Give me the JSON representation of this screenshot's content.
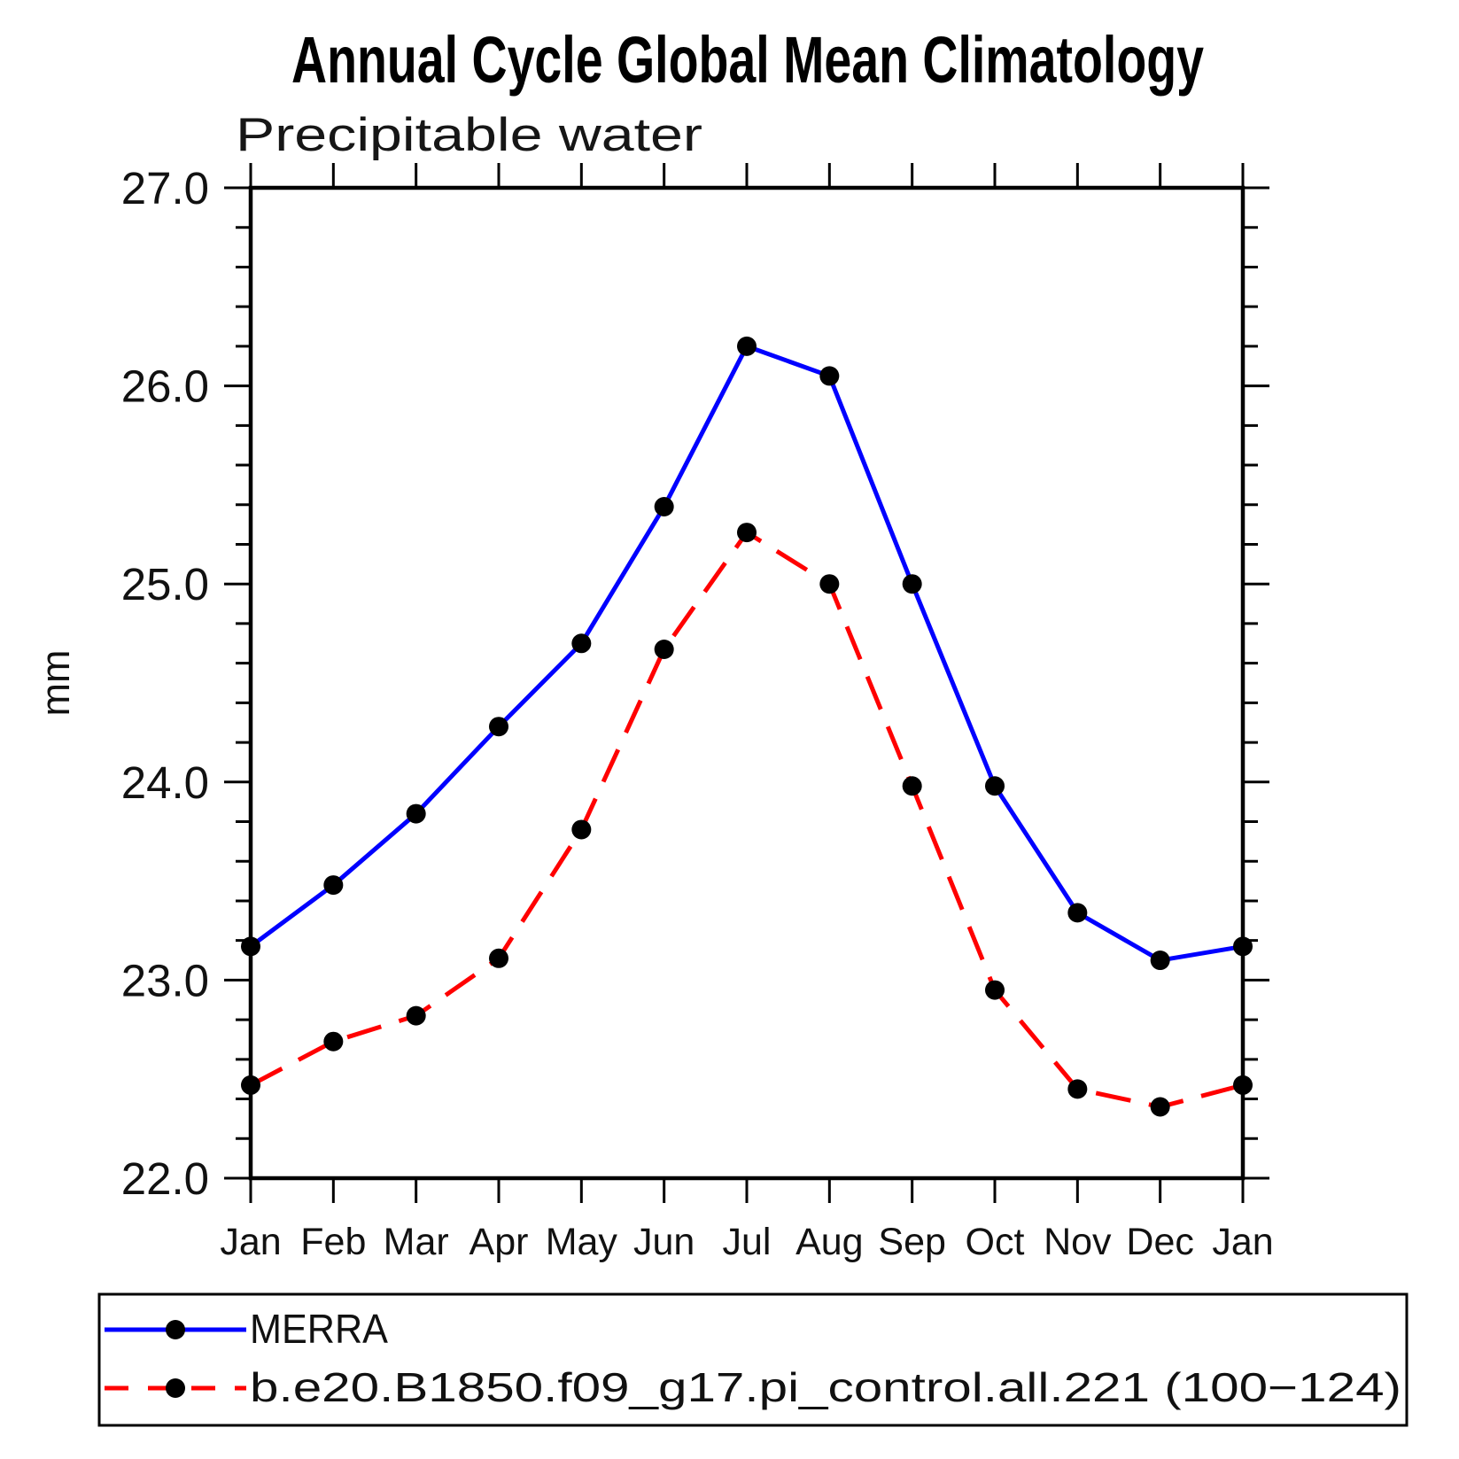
{
  "chart_data": {
    "type": "line",
    "title": "Annual Cycle Global Mean Climatology",
    "subtitle": "Precipitable water",
    "xlabel": "",
    "ylabel": "mm",
    "categories": [
      "Jan",
      "Feb",
      "Mar",
      "Apr",
      "May",
      "Jun",
      "Jul",
      "Aug",
      "Sep",
      "Oct",
      "Nov",
      "Dec",
      "Jan"
    ],
    "ylim": [
      22.0,
      27.0
    ],
    "ytick_labels": [
      "22.0",
      "23.0",
      "24.0",
      "25.0",
      "26.0",
      "27.0"
    ],
    "y_minor_tick_step": 0.2,
    "grid": false,
    "legend_position": "bottom",
    "axis_color": "#000000",
    "marker": "filled-circle",
    "marker_color": "#000000",
    "series": [
      {
        "name": "MERRA",
        "color": "#0000ff",
        "style": "solid",
        "values": [
          23.17,
          23.48,
          23.84,
          24.28,
          24.7,
          25.39,
          26.2,
          26.05,
          25.0,
          23.98,
          23.34,
          23.1,
          23.17
        ]
      },
      {
        "name": "b.e20.B1850.f09_g17.pi_control.all.221 (100−124)",
        "color": "#ff0000",
        "style": "dashed",
        "values": [
          22.47,
          22.69,
          22.82,
          23.11,
          23.76,
          24.67,
          25.26,
          25.0,
          23.98,
          22.95,
          22.45,
          22.36,
          22.47
        ]
      }
    ]
  }
}
